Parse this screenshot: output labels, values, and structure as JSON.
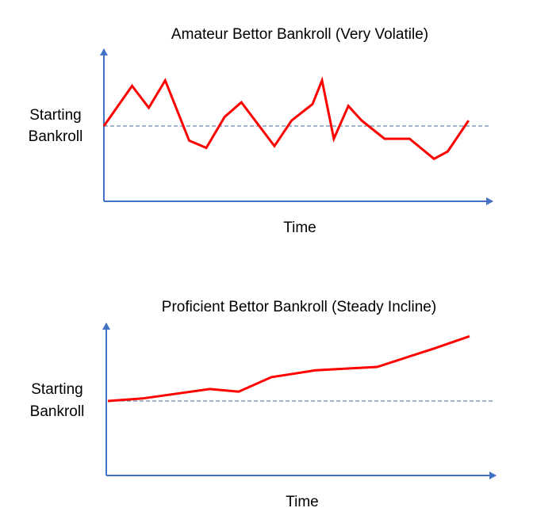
{
  "colors": {
    "axis": "#4472C4",
    "series": "#FF0000",
    "baseline": "#4A6A92",
    "text": "#000000"
  },
  "chart_data": [
    {
      "type": "line",
      "title": "Amateur Bettor Bankroll (Very Volatile)",
      "ylabel_lines": [
        "Starting",
        "Bankroll"
      ],
      "xlabel": "Time",
      "baseline": 50,
      "xlim": [
        0,
        100
      ],
      "ylim": [
        0,
        100
      ],
      "grid": false,
      "legend": "none",
      "series": [
        {
          "x": [
            0,
            7.4,
            11.8,
            16.1,
            22.4,
            26.9,
            31.7,
            36.1,
            44.8,
            49.3,
            54.8,
            57.3,
            60.4,
            64.2,
            67.7,
            73.7,
            80.3,
            86.7,
            90.3,
            95.8
          ],
          "y": [
            50,
            72,
            60,
            75,
            42,
            38,
            55,
            63,
            39,
            53,
            62,
            75,
            43,
            61,
            53,
            43,
            43,
            32,
            36,
            53
          ]
        }
      ]
    },
    {
      "type": "line",
      "title": "Proficient Bettor Bankroll (Steady Incline)",
      "ylabel_lines": [
        "Starting",
        "Bankroll"
      ],
      "xlabel": "Time",
      "baseline": 50,
      "xlim": [
        0,
        100
      ],
      "ylim": [
        0,
        100
      ],
      "grid": false,
      "legend": "none",
      "series": [
        {
          "x": [
            0,
            9,
            26.5,
            34,
            42.5,
            54,
            70,
            85,
            94
          ],
          "y": [
            50,
            51.5,
            57,
            55.5,
            64,
            68,
            70,
            81,
            88
          ]
        }
      ]
    }
  ]
}
